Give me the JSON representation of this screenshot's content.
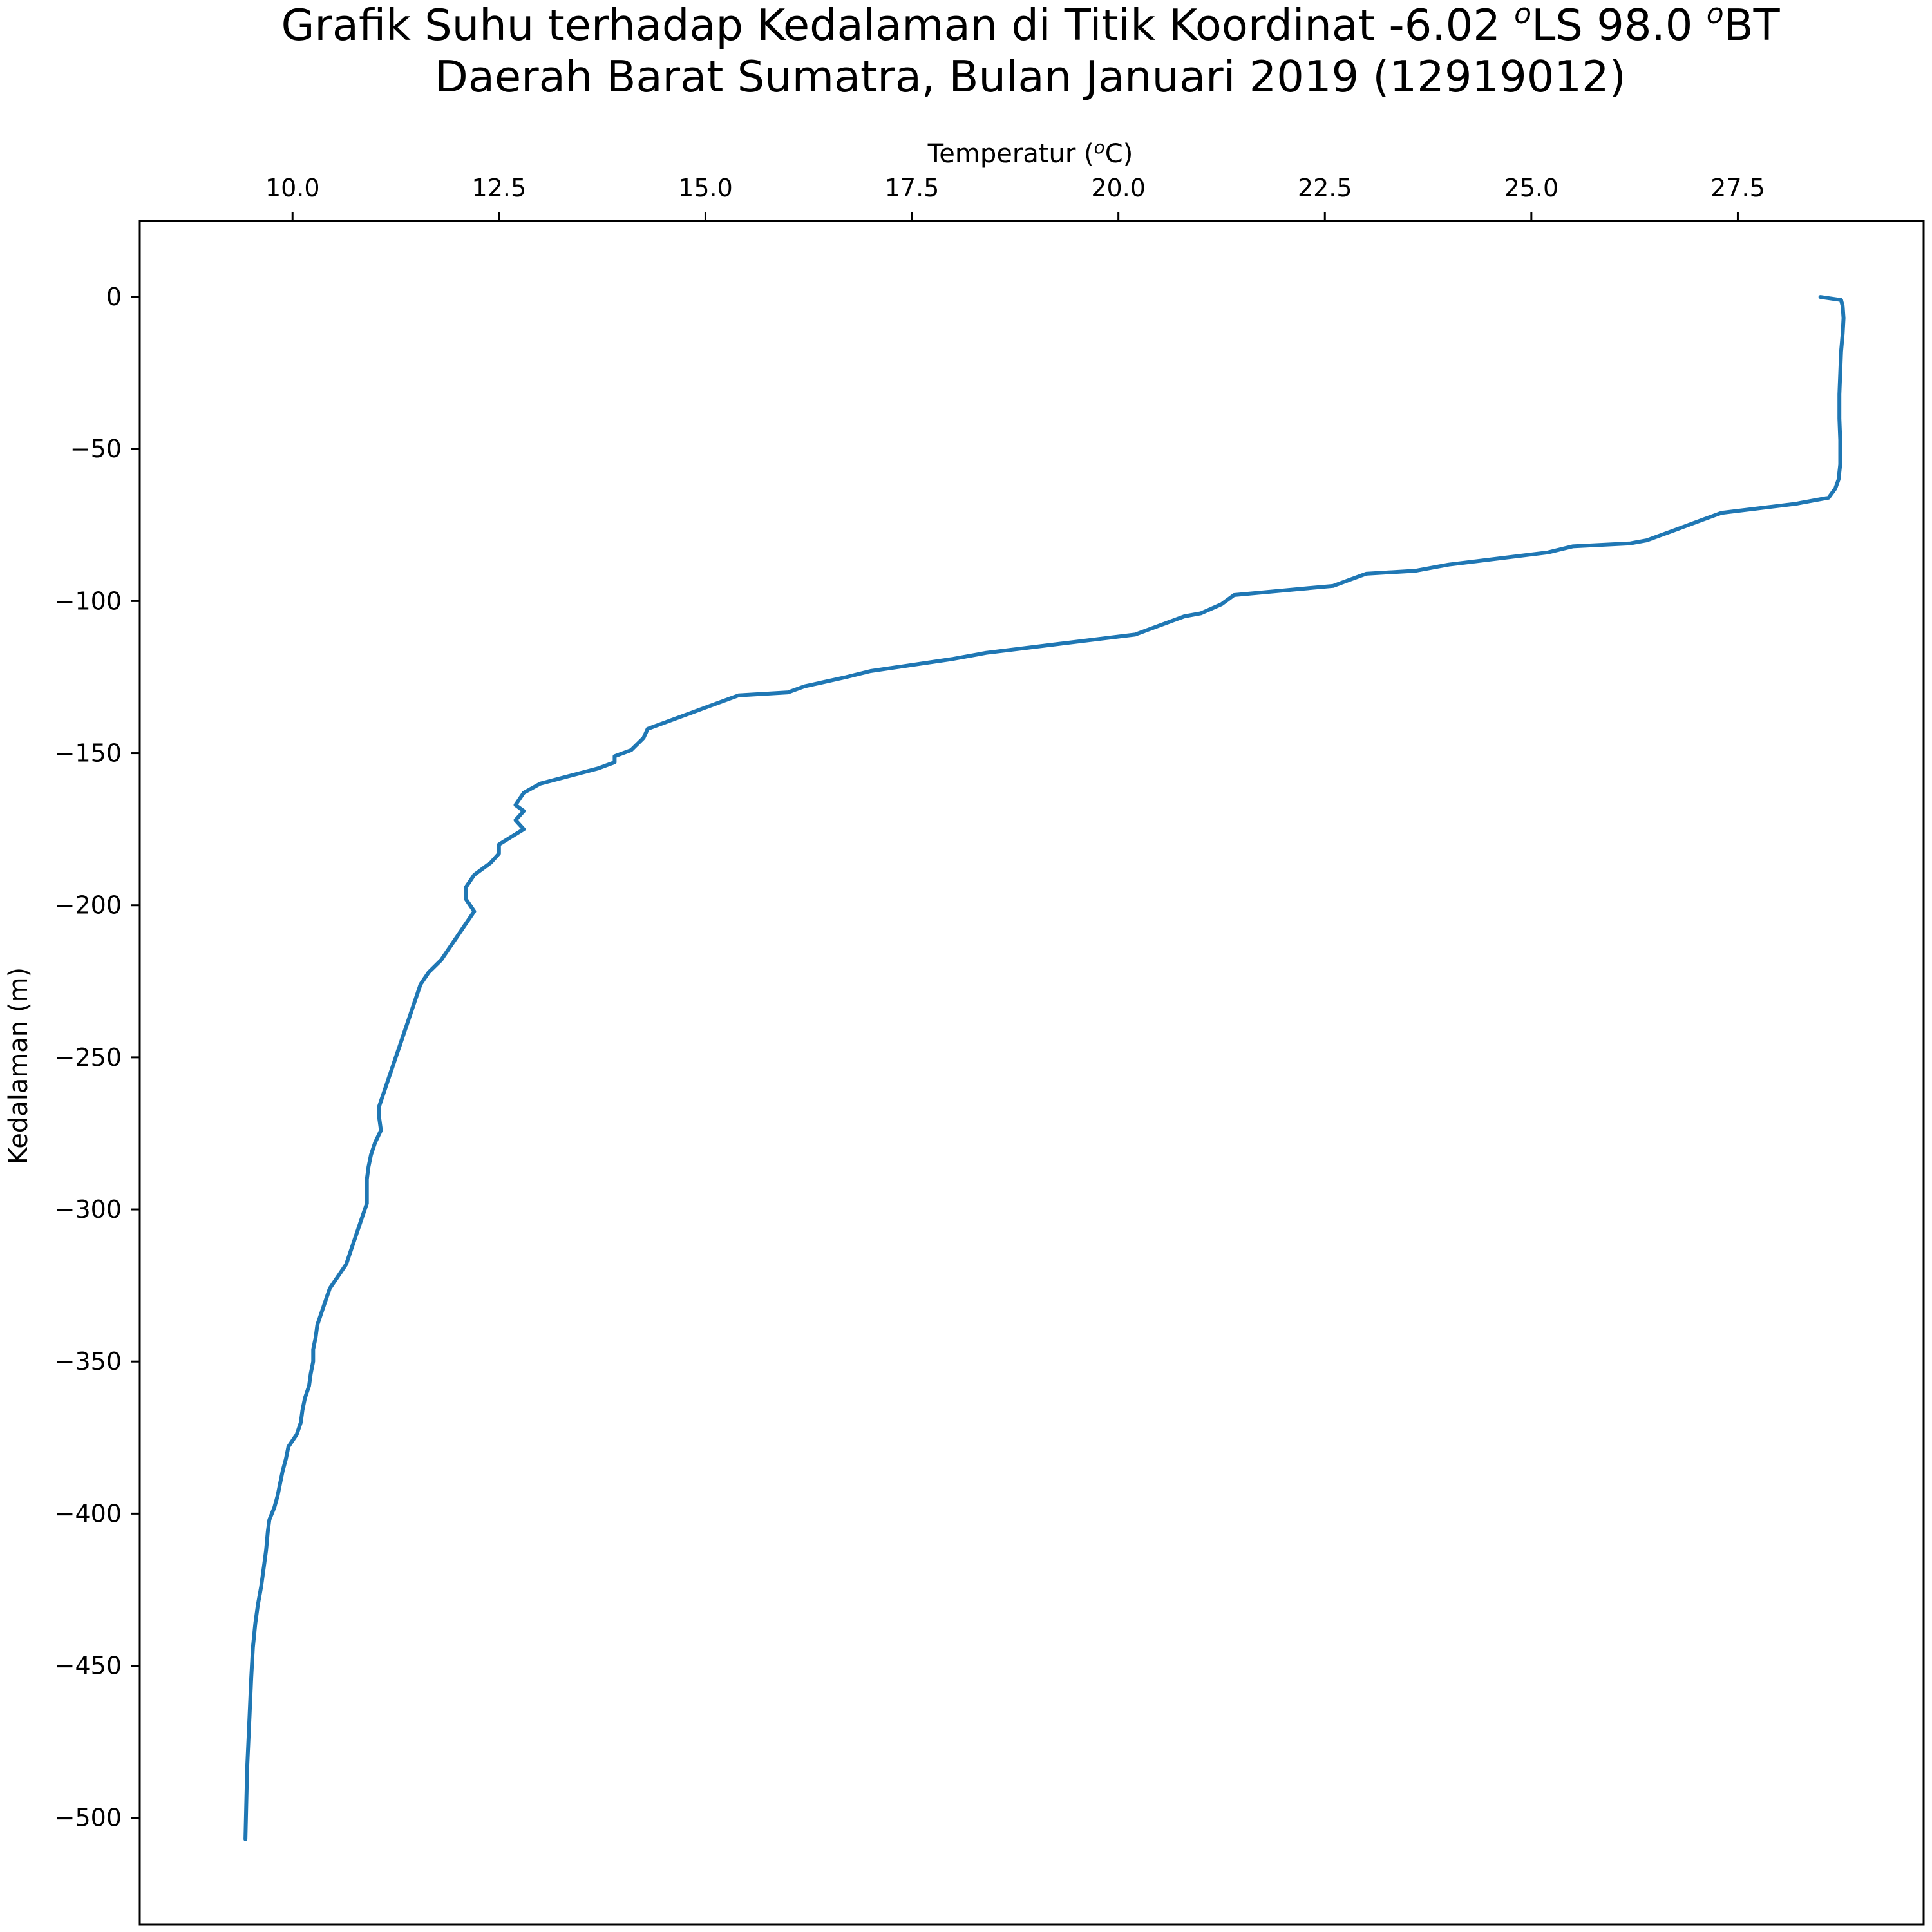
{
  "chart_data": {
    "type": "line",
    "title_line1_prefix": "Grafik Suhu terhadap Kedalaman di Titik Koordinat -6.02 ",
    "title_sup1": "o",
    "title_line1_middle": "LS 98.0 ",
    "title_sup2": "o",
    "title_line1_suffix": "BT",
    "title_line2": "Daerah Barat Sumatra, Bulan Januari 2019 (12919012)",
    "xlabel_prefix": "Temperatur (",
    "xlabel_sup": "o",
    "xlabel_suffix": "C)",
    "ylabel": "Kedalaman (m)",
    "x_axis_position": "top",
    "xlim": [
      8.15,
      29.75
    ],
    "ylim": [
      -535,
      25
    ],
    "x_ticks": [
      "10.0",
      "12.5",
      "15.0",
      "17.5",
      "20.0",
      "22.5",
      "25.0",
      "27.5"
    ],
    "y_ticks": [
      "0",
      "−50",
      "−100",
      "−150",
      "−200",
      "−250",
      "−300",
      "−350",
      "−400",
      "−450",
      "−500"
    ],
    "grid": false,
    "line_color": "#1f77b4",
    "series": [
      {
        "x_temperature": [
          28.5,
          28.75,
          28.77,
          28.78,
          28.77,
          28.75,
          28.74,
          28.73,
          28.73,
          28.74,
          28.74,
          28.72,
          28.68,
          28.6,
          28.2,
          27.3,
          27.0,
          26.7,
          26.5,
          26.4,
          26.2,
          25.5,
          25.2,
          24.0,
          23.6,
          23.0,
          22.8,
          22.6,
          22.2,
          21.4,
          21.25,
          21.0,
          20.8,
          20.7,
          20.5,
          20.2,
          19.3,
          18.7,
          18.4,
          18.0,
          17.0,
          16.7,
          16.2,
          16.0,
          15.4,
          15.0,
          14.8,
          14.5,
          14.3,
          14.25,
          14.1,
          13.9,
          13.9,
          13.7,
          13.0,
          12.8,
          12.7,
          12.8,
          12.7,
          12.8,
          12.5,
          12.5,
          12.4,
          12.2,
          12.1,
          12.1,
          12.2,
          12.1,
          12.0,
          11.9,
          11.8,
          11.65,
          11.55,
          11.5,
          11.45,
          11.4,
          11.35,
          11.3,
          11.25,
          11.2,
          11.15,
          11.1,
          11.05,
          11.05,
          11.07,
          11.0,
          10.95,
          10.92,
          10.9,
          10.9,
          10.9,
          10.85,
          10.8,
          10.75,
          10.7,
          10.65,
          10.55,
          10.45,
          10.4,
          10.35,
          10.3,
          10.28,
          10.25,
          10.25,
          10.22,
          10.2,
          10.15,
          10.12,
          10.1,
          10.05,
          9.95,
          9.92,
          9.88,
          9.85,
          9.82,
          9.78,
          9.72,
          9.7,
          9.68,
          9.65,
          9.62,
          9.58,
          9.55,
          9.52,
          9.5,
          9.48,
          9.45,
          9.43
        ],
        "y_depth": [
          0,
          -1,
          -3,
          -7,
          -12,
          -18,
          -25,
          -32,
          -40,
          -47,
          -55,
          -60,
          -63,
          -66,
          -68,
          -71,
          -74,
          -77,
          -79,
          -80,
          -81,
          -82,
          -84,
          -88,
          -90,
          -91,
          -93,
          -95,
          -96,
          -98,
          -101,
          -104,
          -105,
          -106,
          -108,
          -111,
          -114,
          -116,
          -117,
          -119,
          -123,
          -125,
          -128,
          -130,
          -131,
          -135,
          -137,
          -140,
          -142,
          -145,
          -149,
          -151,
          -153,
          -155,
          -160,
          -163,
          -167,
          -169,
          -172,
          -175,
          -180,
          -183,
          -186,
          -190,
          -194,
          -198,
          -202,
          -206,
          -210,
          -214,
          -218,
          -222,
          -226,
          -230,
          -234,
          -238,
          -242,
          -246,
          -250,
          -254,
          -258,
          -262,
          -266,
          -270,
          -274,
          -278,
          -282,
          -286,
          -290,
          -294,
          -298,
          -302,
          -306,
          -310,
          -314,
          -318,
          -322,
          -326,
          -330,
          -334,
          -338,
          -342,
          -346,
          -350,
          -354,
          -358,
          -362,
          -366,
          -370,
          -374,
          -378,
          -382,
          -386,
          -390,
          -394,
          -398,
          -402,
          -406,
          -412,
          -418,
          -424,
          -430,
          -436,
          -444,
          -454,
          -466,
          -484,
          -507
        ]
      }
    ]
  }
}
